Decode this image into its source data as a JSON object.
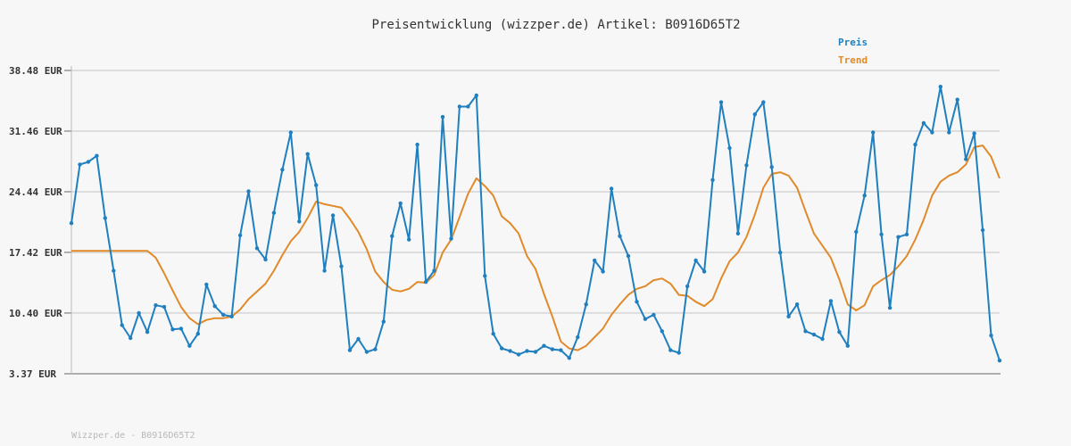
{
  "footer": "Wizzper.de - B0916D65T2",
  "chart_data": {
    "type": "line",
    "title": "Preisentwicklung (wizzper.de) Artikel: B0916D65T2",
    "xlabel": "",
    "ylabel": "",
    "ylim": [
      3.37,
      38.48
    ],
    "yticks": [
      38.48,
      31.46,
      24.44,
      17.42,
      10.4,
      3.37
    ],
    "ytick_labels": [
      "38.48 EUR",
      "31.46 EUR",
      "24.44 EUR",
      "17.42 EUR",
      "10.40 EUR",
      "3.37 EUR"
    ],
    "grid": true,
    "legend_position": "top-right",
    "colors": {
      "preis": "#1f7fbf",
      "trend": "#e08a2a"
    },
    "series": [
      {
        "name": "Preis",
        "values": [
          20.8,
          27.6,
          27.9,
          28.6,
          21.4,
          15.3,
          9.0,
          7.5,
          10.4,
          8.2,
          11.3,
          11.1,
          8.5,
          8.6,
          6.6,
          8.0,
          13.7,
          11.2,
          10.2,
          10.0,
          19.4,
          24.5,
          17.9,
          16.6,
          22.0,
          27.0,
          31.3,
          21.0,
          28.8,
          25.2,
          15.3,
          21.7,
          15.8,
          6.1,
          7.4,
          5.9,
          6.2,
          9.4,
          19.3,
          23.1,
          18.9,
          29.9,
          14.0,
          15.3,
          33.1,
          19.0,
          34.3,
          34.3,
          35.6,
          14.7,
          8.0,
          6.3,
          6.0,
          5.6,
          6.0,
          5.9,
          6.6,
          6.2,
          6.1,
          5.2,
          7.6,
          11.4,
          16.5,
          15.2,
          24.8,
          19.3,
          17.0,
          11.7,
          9.7,
          10.2,
          8.3,
          6.1,
          5.8,
          13.5,
          16.5,
          15.2,
          25.8,
          34.8,
          29.5,
          19.6,
          27.5,
          33.4,
          34.8,
          27.3,
          17.4,
          10.0,
          11.4,
          8.3,
          7.9,
          7.4,
          11.8,
          8.2,
          6.6,
          19.8,
          24.0,
          31.3,
          19.5,
          11.0,
          19.2,
          19.5,
          29.9,
          32.4,
          31.3,
          36.6,
          31.3,
          35.1,
          28.2,
          31.2,
          20.0,
          7.8,
          4.9
        ]
      },
      {
        "name": "Trend",
        "values": [
          17.6,
          17.6,
          17.6,
          17.6,
          17.6,
          17.6,
          17.6,
          17.6,
          17.6,
          17.6,
          16.8,
          15.0,
          13.0,
          11.1,
          9.8,
          9.1,
          9.6,
          9.8,
          9.8,
          10.0,
          10.8,
          12.0,
          12.9,
          13.8,
          15.3,
          17.1,
          18.7,
          19.8,
          21.4,
          23.3,
          23.0,
          22.8,
          22.6,
          21.3,
          19.8,
          17.8,
          15.2,
          14.0,
          13.1,
          12.9,
          13.2,
          14.0,
          13.9,
          14.8,
          17.4,
          18.9,
          21.5,
          24.2,
          26.0,
          25.1,
          24.0,
          21.6,
          20.8,
          19.6,
          17.0,
          15.5,
          12.6,
          10.0,
          7.1,
          6.3,
          6.1,
          6.6,
          7.6,
          8.6,
          10.2,
          11.4,
          12.5,
          13.2,
          13.5,
          14.2,
          14.4,
          13.8,
          12.5,
          12.4,
          11.7,
          11.2,
          12.0,
          14.4,
          16.4,
          17.4,
          19.2,
          21.8,
          24.9,
          26.5,
          26.7,
          26.3,
          24.9,
          22.2,
          19.6,
          18.2,
          16.8,
          14.3,
          11.4,
          10.7,
          11.3,
          13.5,
          14.2,
          14.8,
          15.8,
          17.0,
          18.9,
          21.2,
          24.0,
          25.6,
          26.3,
          26.7,
          27.6,
          29.6,
          29.8,
          28.5,
          26.0
        ]
      }
    ]
  }
}
